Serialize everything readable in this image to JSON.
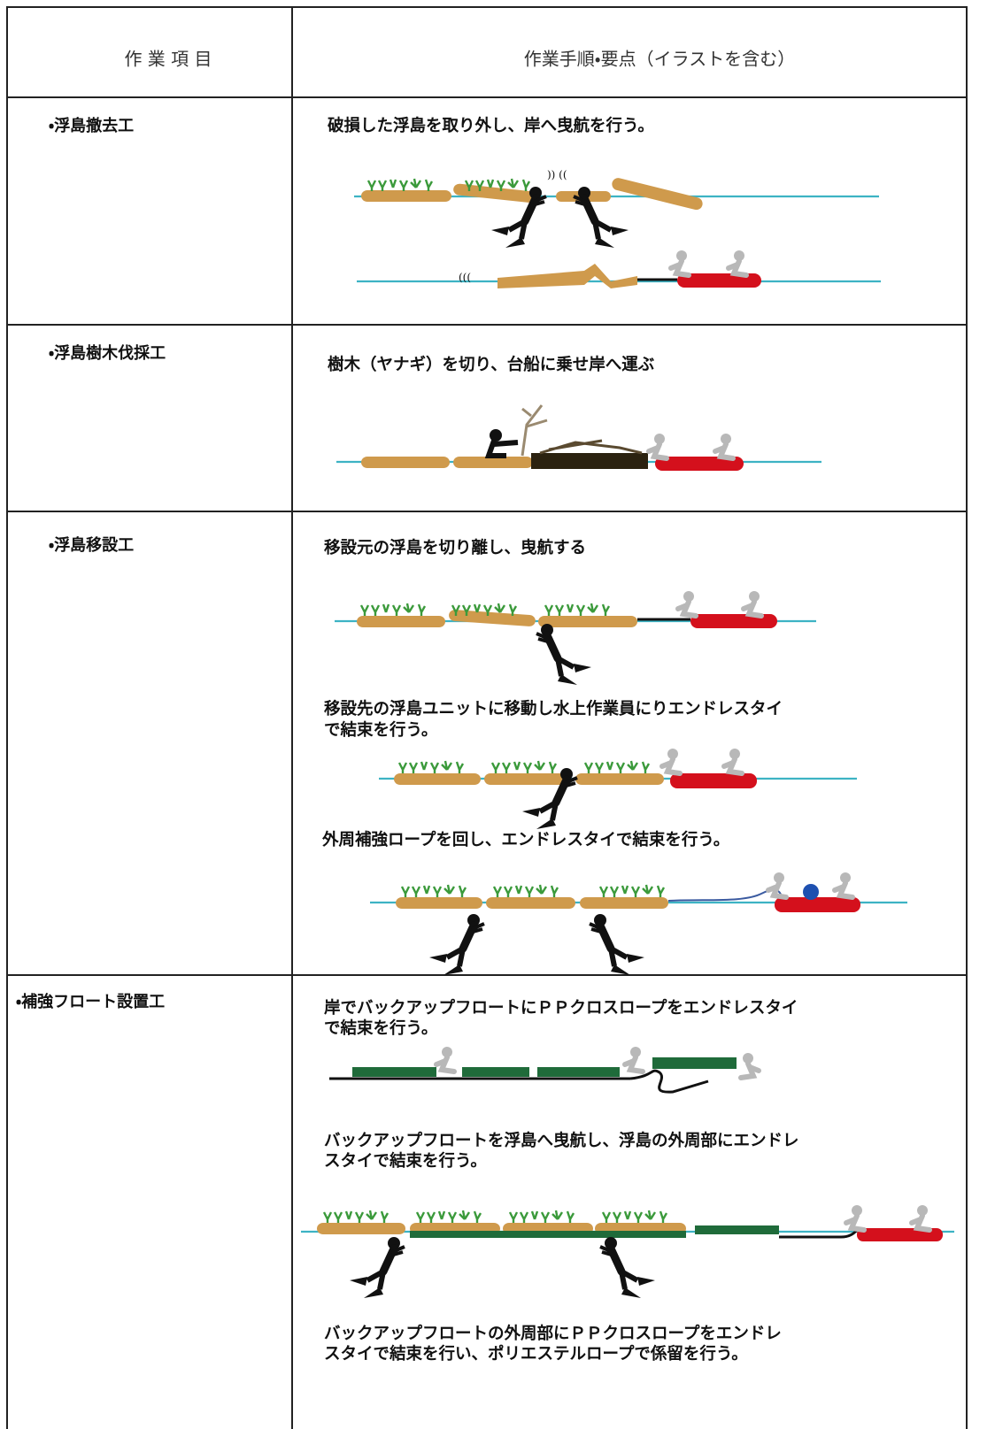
{
  "header": {
    "item": "作 業 項 目",
    "procedure": "作業手順・要点（イラストを含む）"
  },
  "rows": [
    {
      "item": "・浮島撤去工",
      "steps": [
        [
          "破損した浮島を取り外し、岸へ曳航を行う。"
        ]
      ]
    },
    {
      "item": "・浮島樹木伐採工",
      "steps": [
        [
          "樹木（ヤナギ）を切り、台船に乗せ岸へ運ぶ"
        ]
      ]
    },
    {
      "item": "・浮島移設工",
      "steps": [
        [
          "移設元の浮島を切り離し、曳航する"
        ],
        [
          "移設先の浮島ユニットに移動し水上作業員にりエンドレスタイ",
          "で結束を行う。"
        ],
        [
          "外周補強ロープを回し、エンドレスタイで結束を行う。"
        ]
      ]
    },
    {
      "item": "・補強フロート設置工",
      "steps": [
        [
          "岸でバックアップフロートにＰＰクロスロープをエンドレスタイ",
          "で結束を行う。"
        ],
        [
          "バックアップフロートを浮島へ曳航し、浮島の外周部にエンドレ",
          "スタイで結束を行う。"
        ],
        [
          "バックアップフロートの外周部にＰＰクロスロープをエンドレ",
          "スタイで結束を行い、ポリエステルロープで係留を行う。"
        ]
      ]
    }
  ]
}
